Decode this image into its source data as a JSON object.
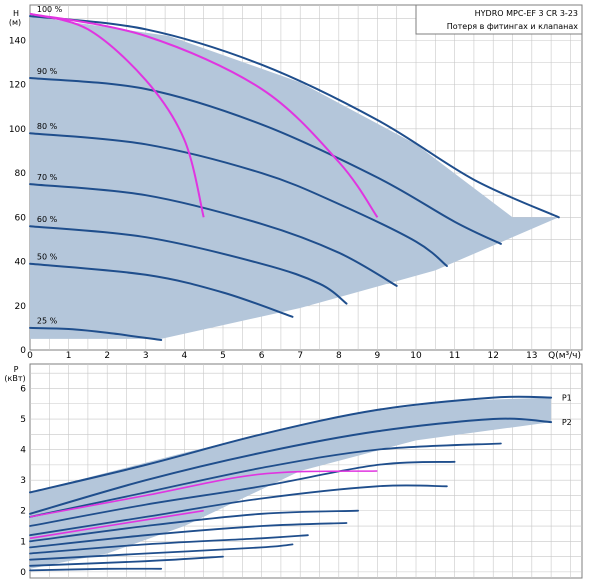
{
  "colors": {
    "curve": "#1f4e8c",
    "magenta": "#e035e0",
    "envelope_fill": "#b4c6da",
    "grid": "#c8c8c8",
    "frame": "#7f7f7f"
  },
  "chart_data": [
    {
      "type": "line",
      "title_box": [
        "HYDRO MPC-EF 3 CR 3-23",
        "Потеря в фитингах и клапанах"
      ],
      "ylabel": [
        "H",
        "(м)"
      ],
      "xlabel": "Q(м³/ч)",
      "xlim": [
        0,
        14.3
      ],
      "ylim": [
        0,
        156
      ],
      "xticks": [
        "0",
        "1",
        "2",
        "3",
        "4",
        "5",
        "6",
        "7",
        "8",
        "9",
        "10",
        "11",
        "12",
        "13"
      ],
      "yticks": [
        "0",
        "20",
        "40",
        "60",
        "80",
        "100",
        "120",
        "140"
      ],
      "grid": true,
      "envelope": [
        [
          0,
          151
        ],
        [
          3.6,
          142
        ],
        [
          7,
          121
        ],
        [
          10,
          93
        ],
        [
          12.5,
          60
        ],
        [
          13.7,
          60
        ],
        [
          10.5,
          36
        ],
        [
          7,
          19
        ],
        [
          3.4,
          5
        ],
        [
          0,
          5
        ]
      ],
      "speed_curves": [
        {
          "label": "100 %",
          "points": [
            [
              0,
              151
            ],
            [
              3,
              145
            ],
            [
              6,
              129
            ],
            [
              9,
              104
            ],
            [
              11.5,
              77
            ],
            [
              13.7,
              60
            ]
          ]
        },
        {
          "label": "90 %",
          "points": [
            [
              0,
              123
            ],
            [
              3,
              118
            ],
            [
              6,
              102
            ],
            [
              9,
              78
            ],
            [
              11,
              58
            ],
            [
              12.2,
              48
            ]
          ]
        },
        {
          "label": "80 %",
          "points": [
            [
              0,
              98
            ],
            [
              3,
              93
            ],
            [
              6,
              80
            ],
            [
              8,
              66
            ],
            [
              10,
              49
            ],
            [
              10.8,
              38
            ]
          ]
        },
        {
          "label": "70 %",
          "points": [
            [
              0,
              75
            ],
            [
              3,
              70
            ],
            [
              6,
              57
            ],
            [
              8,
              44
            ],
            [
              9.5,
              29
            ]
          ]
        },
        {
          "label": "60 %",
          "points": [
            [
              0,
              56
            ],
            [
              3,
              51
            ],
            [
              6,
              39
            ],
            [
              7.5,
              30
            ],
            [
              8.2,
              21
            ]
          ]
        },
        {
          "label": "50 %",
          "points": [
            [
              0,
              39
            ],
            [
              3,
              34
            ],
            [
              5,
              26
            ],
            [
              6.8,
              15
            ]
          ]
        },
        {
          "label": "25 %",
          "points": [
            [
              0,
              10
            ],
            [
              1,
              9.5
            ],
            [
              2,
              7.8
            ],
            [
              3.4,
              4.5
            ]
          ]
        }
      ],
      "system_curves": [
        {
          "points": [
            [
              0,
              152
            ],
            [
              1.5,
              145
            ],
            [
              3,
              122
            ],
            [
              4,
              95
            ],
            [
              4.5,
              60
            ]
          ]
        },
        {
          "points": [
            [
              0,
              152
            ],
            [
              3,
              142
            ],
            [
              6,
              118
            ],
            [
              8,
              85
            ],
            [
              9,
              60
            ]
          ]
        }
      ],
      "speed_label_positions": {
        "100 %": [
          0.1,
          152
        ],
        "90 %": [
          0.1,
          124
        ],
        "80 %": [
          0.1,
          99
        ],
        "70 %": [
          0.1,
          76
        ],
        "60 %": [
          0.1,
          57
        ],
        "50 %": [
          0.1,
          40
        ],
        "25 %": [
          0.1,
          11
        ]
      }
    },
    {
      "type": "line",
      "ylabel": [
        "P",
        "(кВт)"
      ],
      "xlim": [
        0,
        14.3
      ],
      "ylim": [
        -0.2,
        6.8
      ],
      "yticks": [
        "0",
        "1",
        "2",
        "3",
        "4",
        "5",
        "6"
      ],
      "grid": true,
      "envelope": [
        [
          0,
          2.6
        ],
        [
          4,
          3.9
        ],
        [
          8,
          5.1
        ],
        [
          11,
          5.6
        ],
        [
          13.5,
          5.7
        ],
        [
          13.5,
          4.9
        ],
        [
          10,
          4.3
        ],
        [
          7,
          3.3
        ],
        [
          4,
          1.5
        ],
        [
          2,
          0.6
        ],
        [
          0,
          0.1
        ]
      ],
      "power_curves": [
        {
          "label": "P1",
          "points": [
            [
              0,
              2.6
            ],
            [
              3,
              3.5
            ],
            [
              6,
              4.5
            ],
            [
              9,
              5.3
            ],
            [
              12,
              5.7
            ],
            [
              13.5,
              5.7
            ]
          ]
        },
        {
          "label": "P2",
          "points": [
            [
              0,
              1.9
            ],
            [
              3,
              3.0
            ],
            [
              6,
              3.9
            ],
            [
              9,
              4.6
            ],
            [
              12,
              5.0
            ],
            [
              13.5,
              4.9
            ]
          ]
        },
        {
          "points": [
            [
              0,
              1.8
            ],
            [
              3,
              2.6
            ],
            [
              6,
              3.4
            ],
            [
              9,
              4.0
            ],
            [
              12.2,
              4.2
            ]
          ]
        },
        {
          "points": [
            [
              0,
              1.5
            ],
            [
              3,
              2.2
            ],
            [
              6,
              2.8
            ],
            [
              9,
              3.5
            ],
            [
              11,
              3.6
            ]
          ]
        },
        {
          "points": [
            [
              0,
              1.2
            ],
            [
              3,
              1.8
            ],
            [
              6,
              2.4
            ],
            [
              9,
              2.8
            ],
            [
              10.8,
              2.8
            ]
          ]
        },
        {
          "points": [
            [
              0,
              1.0
            ],
            [
              3,
              1.5
            ],
            [
              6,
              1.9
            ],
            [
              8.5,
              2.0
            ]
          ]
        },
        {
          "points": [
            [
              0,
              0.8
            ],
            [
              3,
              1.2
            ],
            [
              6,
              1.5
            ],
            [
              8.2,
              1.6
            ]
          ]
        },
        {
          "points": [
            [
              0,
              0.6
            ],
            [
              3,
              0.9
            ],
            [
              6,
              1.1
            ],
            [
              7.2,
              1.2
            ]
          ]
        },
        {
          "points": [
            [
              0,
              0.4
            ],
            [
              3,
              0.6
            ],
            [
              6,
              0.8
            ],
            [
              6.8,
              0.9
            ]
          ]
        },
        {
          "points": [
            [
              0,
              0.2
            ],
            [
              3,
              0.35
            ],
            [
              5,
              0.5
            ]
          ]
        },
        {
          "points": [
            [
              0,
              0.05
            ],
            [
              2,
              0.1
            ],
            [
              3.4,
              0.1
            ]
          ]
        }
      ],
      "system_curves": [
        {
          "points": [
            [
              0,
              1.8
            ],
            [
              3,
              2.5
            ],
            [
              6,
              3.2
            ],
            [
              9,
              3.3
            ]
          ]
        },
        {
          "points": [
            [
              0,
              1.1
            ],
            [
              2,
              1.5
            ],
            [
              4.5,
              2.0
            ]
          ]
        }
      ],
      "curve_label_values": {
        "P1": [
          13.7,
          5.7
        ],
        "P2": [
          13.7,
          4.9
        ]
      }
    }
  ]
}
